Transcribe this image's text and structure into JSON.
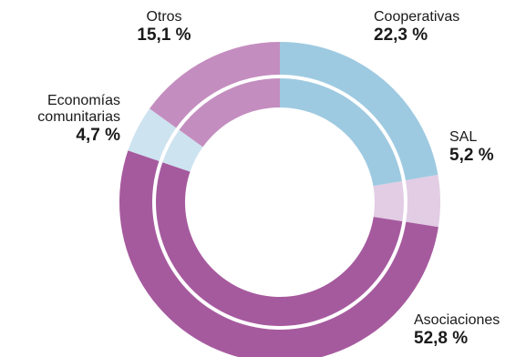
{
  "chart_data": {
    "type": "pie",
    "variant": "double-donut",
    "categories": [
      "Cooperativas",
      "SAL",
      "Asociaciones",
      "Economías comunitarias",
      "Otros"
    ],
    "values": [
      22.3,
      5.2,
      52.8,
      4.7,
      15.1
    ],
    "labels": {
      "cooperativas": {
        "name": "Cooperativas",
        "pct": "22,3 %"
      },
      "sal": {
        "name": "SAL",
        "pct": "5,2 %"
      },
      "asociaciones": {
        "name": "Asociaciones",
        "pct": "52,8 %"
      },
      "economias_line1": "Economías",
      "economias_line2": "comunitarias",
      "economias_pct": "4,7 %",
      "otros": {
        "name": "Otros",
        "pct": "15,1 %"
      }
    },
    "colors": {
      "outer": [
        "#9ecae1",
        "#e2cde4",
        "#a65a9e",
        "#cde3f0",
        "#c48dbf"
      ],
      "inner": [
        "#9ecae1",
        "#e2cde4",
        "#a65a9e",
        "#cde3f0",
        "#c48dbf"
      ]
    },
    "legend": "none"
  }
}
